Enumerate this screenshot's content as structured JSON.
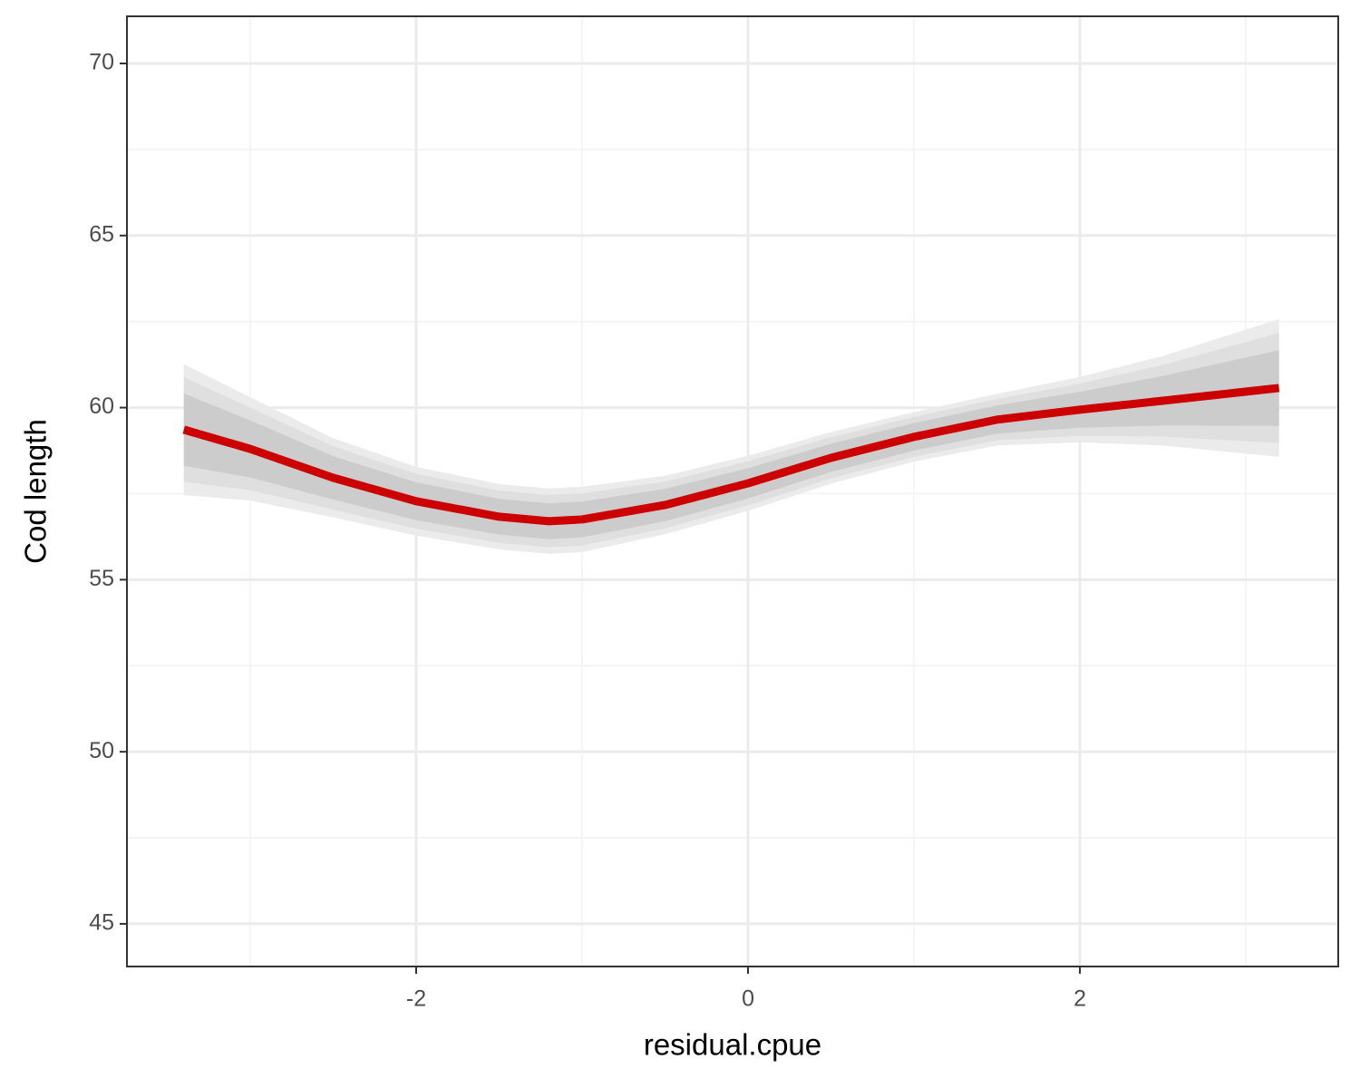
{
  "chart_data": {
    "type": "line",
    "x_label": "residual.cpue",
    "y_label": "Cod length",
    "xlim": [
      -3.743,
      3.557
    ],
    "ylim": [
      43.76,
      71.37
    ],
    "xticks": [
      -2,
      0,
      2
    ],
    "yticks": [
      45,
      50,
      55,
      60,
      65,
      70
    ],
    "minor_xticks": [
      -3,
      -1,
      1,
      3
    ],
    "minor_yticks": [
      47.5,
      52.5,
      57.5,
      62.5,
      67.5
    ],
    "grid": true,
    "x": [
      -3.4,
      -3,
      -2.5,
      -2,
      -1.5,
      -1.2,
      -1,
      -0.5,
      0,
      0.5,
      1,
      1.5,
      2,
      2.5,
      3.2
    ],
    "series": [
      {
        "color": "#cc0000",
        "values": [
          59.36,
          58.8,
          57.96,
          57.28,
          56.83,
          56.7,
          56.75,
          57.17,
          57.8,
          58.54,
          59.15,
          59.65,
          59.94,
          60.2,
          60.57
        ]
      }
    ],
    "bands": [
      {
        "color": "#ebebeb",
        "upper": [
          61.26,
          60.3,
          59.11,
          58.28,
          57.78,
          57.65,
          57.7,
          58.02,
          58.6,
          59.29,
          59.87,
          60.4,
          60.89,
          61.5,
          62.57
        ],
        "lower": [
          57.46,
          57.3,
          56.81,
          56.28,
          55.88,
          55.75,
          55.8,
          56.32,
          57.0,
          57.79,
          58.43,
          58.9,
          58.99,
          58.9,
          58.57
        ]
      },
      {
        "color": "#dfdfdf",
        "upper": [
          60.88,
          60.0,
          58.88,
          58.08,
          57.59,
          57.46,
          57.51,
          57.85,
          58.44,
          59.14,
          59.73,
          60.25,
          60.7,
          61.24,
          62.17
        ],
        "lower": [
          57.84,
          57.6,
          57.04,
          56.48,
          56.07,
          55.94,
          55.99,
          56.49,
          57.16,
          57.94,
          58.57,
          59.05,
          59.18,
          59.16,
          58.97
        ]
      },
      {
        "color": "#cccccc",
        "upper": [
          60.41,
          59.63,
          58.59,
          57.83,
          57.35,
          57.22,
          57.27,
          57.64,
          58.24,
          58.95,
          59.55,
          60.06,
          60.46,
          60.92,
          61.67
        ],
        "lower": [
          58.31,
          57.97,
          57.33,
          56.73,
          56.31,
          56.18,
          56.23,
          56.7,
          57.36,
          58.13,
          58.75,
          59.24,
          59.42,
          59.48,
          59.47
        ]
      }
    ]
  }
}
